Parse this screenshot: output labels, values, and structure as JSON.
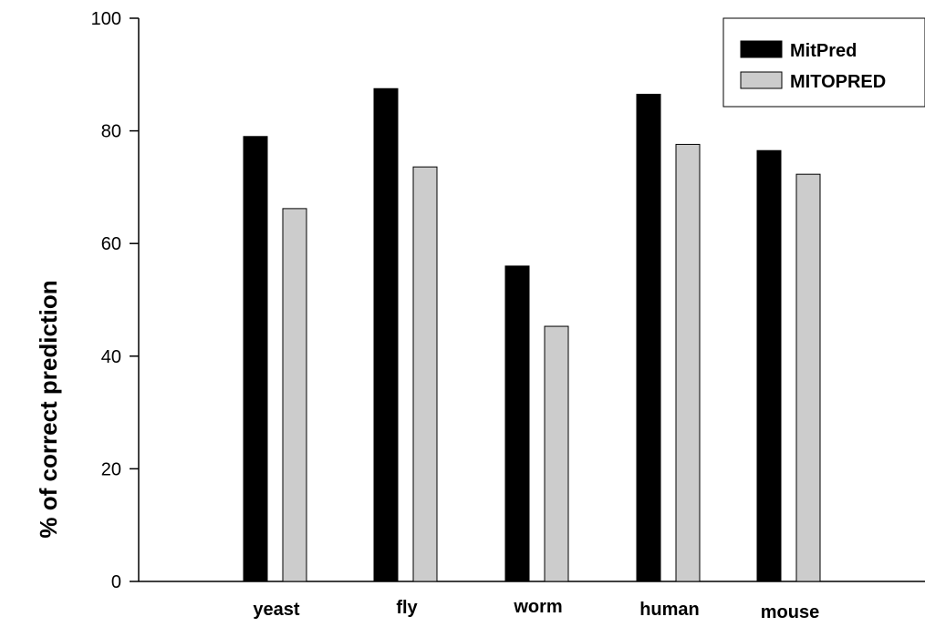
{
  "chart_data": {
    "type": "bar",
    "categories": [
      "yeast",
      "fly",
      "worm",
      "human",
      "mouse"
    ],
    "series": [
      {
        "name": "MitPred",
        "values": [
          79,
          87.5,
          56,
          86.5,
          76.5
        ],
        "color": "#000000"
      },
      {
        "name": "MITOPRED",
        "values": [
          66.2,
          73.6,
          45.3,
          77.6,
          72.3
        ],
        "color": "#cccccc"
      }
    ],
    "title": "",
    "xlabel": "",
    "ylabel": "% of correct prediction",
    "ylim": [
      0,
      100
    ],
    "yticks": [
      "0",
      "20",
      "40",
      "60",
      "80",
      "100"
    ],
    "grid": false,
    "legend_position": "top-right"
  }
}
